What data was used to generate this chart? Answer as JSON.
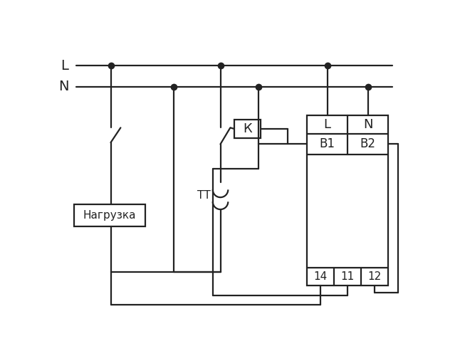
{
  "bg_color": "#ffffff",
  "line_color": "#222222",
  "lw": 1.6,
  "dot_r": 3.5,
  "fig_w": 6.46,
  "fig_h": 5.0,
  "dpi": 100,
  "L_label": "L",
  "N_label": "N",
  "TT_label": "ТТ",
  "K_label": "К",
  "load_label": "Нагрузка",
  "B1_label": "B1",
  "B2_label": "B2",
  "L_top_label": "L",
  "N_top_label": "N",
  "t14": "14",
  "t11": "11",
  "t12": "12"
}
